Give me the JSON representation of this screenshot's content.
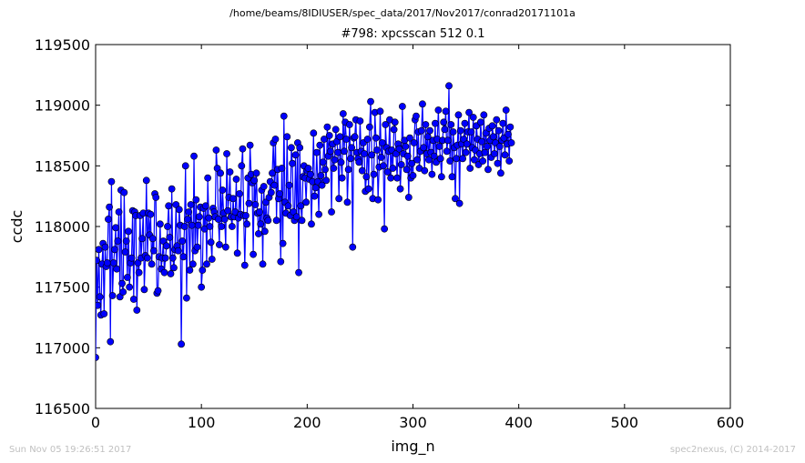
{
  "header": {
    "suptitle": "/home/beams/8IDIUSER/spec_data/2017/Nov2017/conrad20171101a"
  },
  "footer": {
    "timestamp": "Sun Nov 05 19:26:51 2017",
    "credit": "spec2nexus, (C) 2014-2017"
  },
  "colors": {
    "series": "#0000ff",
    "marker_edge": "#000000"
  },
  "chart_data": {
    "type": "line",
    "title": "#798: xpcsscan 512 0.1",
    "xlabel": "img_n",
    "ylabel": "ccdc",
    "xlim": [
      0,
      600
    ],
    "ylim": [
      116500,
      119500
    ],
    "xticks": [
      0,
      100,
      200,
      300,
      400,
      500,
      600
    ],
    "yticks": [
      116500,
      117000,
      117500,
      118000,
      118500,
      119000,
      119500
    ],
    "xtick_labels": [
      "0",
      "100",
      "200",
      "300",
      "400",
      "500",
      "600"
    ],
    "ytick_labels": [
      "116500",
      "117000",
      "117500",
      "118000",
      "118500",
      "119000",
      "119500"
    ],
    "grid": false,
    "marker": "circle",
    "series": [
      {
        "x_start": 0,
        "x_step": 1,
        "values": [
          116920,
          117720,
          117350,
          117810,
          117420,
          117270,
          117690,
          117860,
          117280,
          117830,
          117670,
          117700,
          118060,
          118160,
          117050,
          118370,
          117430,
          117700,
          117810,
          117990,
          117650,
          117880,
          118120,
          117420,
          118300,
          117530,
          117460,
          118280,
          117790,
          117880,
          117580,
          117960,
          117500,
          117700,
          117740,
          118130,
          117400,
          118120,
          118090,
          117310,
          117700,
          117620,
          118090,
          117740,
          117900,
          118110,
          117480,
          117760,
          118380,
          117740,
          118110,
          117930,
          118100,
          117690,
          117900,
          117800,
          118270,
          118240,
          117450,
          117470,
          117750,
          118020,
          117650,
          117740,
          117880,
          117620,
          117740,
          117840,
          118000,
          118170,
          117910,
          117610,
          118310,
          117740,
          117660,
          117810,
          118180,
          117840,
          117800,
          118140,
          118010,
          117030,
          117880,
          117750,
          118000,
          118500,
          117410,
          118060,
          118120,
          117640,
          118180,
          118010,
          117690,
          118580,
          117800,
          118220,
          117830,
          118010,
          118080,
          118160,
          117500,
          117640,
          118150,
          117980,
          118170,
          117690,
          118400,
          118070,
          118000,
          117870,
          117730,
          118150,
          118120,
          118080,
          118630,
          118480,
          118060,
          117850,
          118440,
          118000,
          118300,
          118110,
          118060,
          117830,
          118600,
          118130,
          118240,
          118450,
          118080,
          118000,
          118230,
          118080,
          118120,
          118390,
          117780,
          118070,
          118270,
          118100,
          118500,
          118640,
          118090,
          117680,
          118090,
          118020,
          118400,
          118190,
          118670,
          118430,
          118360,
          117770,
          118380,
          118180,
          118440,
          118110,
          117940,
          118120,
          118020,
          118300,
          117690,
          118330,
          117960,
          118200,
          118070,
          118050,
          118240,
          118370,
          118280,
          118440,
          118690,
          118340,
          118720,
          118050,
          118470,
          118230,
          118270,
          117710,
          118480,
          117860,
          118910,
          118200,
          118110,
          118740,
          118170,
          118340,
          118090,
          118650,
          118520,
          118120,
          118050,
          118590,
          118080,
          118690,
          117620,
          118650,
          118170,
          118050,
          118410,
          118500,
          118400,
          118200,
          118460,
          118480,
          118390,
          118430,
          118020,
          118370,
          118770,
          118250,
          118320,
          118610,
          118370,
          118100,
          118670,
          118420,
          118340,
          118530,
          118720,
          118470,
          118380,
          118820,
          118580,
          118750,
          118620,
          118120,
          118680,
          118480,
          118550,
          118800,
          118700,
          118610,
          118230,
          118740,
          118530,
          118400,
          118930,
          118620,
          118860,
          118720,
          118200,
          118470,
          118840,
          118560,
          118650,
          117830,
          118730,
          118740,
          118880,
          118610,
          118560,
          118530,
          118870,
          118620,
          118460,
          118690,
          118600,
          118290,
          118410,
          118720,
          118310,
          118820,
          119030,
          118590,
          118230,
          118430,
          118940,
          118730,
          118630,
          118220,
          118490,
          118950,
          118570,
          118690,
          118500,
          117980,
          118840,
          118650,
          118450,
          118620,
          118880,
          118400,
          118630,
          118480,
          118800,
          118860,
          118600,
          118400,
          118680,
          118640,
          118310,
          118510,
          118990,
          118600,
          118710,
          118660,
          118470,
          118580,
          118240,
          118730,
          118400,
          118520,
          118420,
          118690,
          118880,
          118910,
          118550,
          118780,
          118480,
          118620,
          118790,
          119010,
          118650,
          118460,
          118840,
          118600,
          118740,
          118550,
          118790,
          118610,
          118430,
          118710,
          118580,
          118850,
          118530,
          118720,
          118960,
          118660,
          118560,
          118410,
          118710,
          118860,
          118800,
          118950,
          118620,
          118710,
          119160,
          118540,
          118840,
          118410,
          118780,
          118650,
          118230,
          118560,
          118670,
          118920,
          118190,
          118790,
          118680,
          118560,
          118720,
          118850,
          118610,
          118680,
          118780,
          118940,
          118480,
          118780,
          118650,
          118900,
          118550,
          118630,
          118830,
          118720,
          118510,
          118600,
          118860,
          118700,
          118540,
          118920,
          118610,
          118770,
          118660,
          118470,
          118810,
          118710,
          118570,
          118830,
          118740,
          118600,
          118690,
          118880,
          118520,
          118790,
          118660,
          118440,
          118710,
          118850,
          118730,
          118590,
          118960,
          118680,
          118760,
          118540,
          118820,
          118690
        ]
      }
    ]
  }
}
